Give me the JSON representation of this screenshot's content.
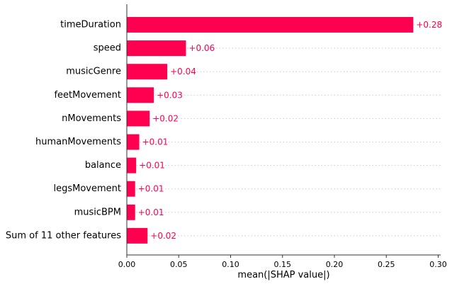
{
  "chart_data": {
    "type": "bar",
    "orientation": "horizontal",
    "categories": [
      "timeDuration",
      "speed",
      "musicGenre",
      "feetMovement",
      "nMovements",
      "humanMovements",
      "balance",
      "legsMovement",
      "musicBPM",
      "Sum of 11 other features"
    ],
    "values": [
      0.276,
      0.057,
      0.039,
      0.026,
      0.022,
      0.012,
      0.009,
      0.008,
      0.008,
      0.02
    ],
    "value_labels": [
      "+0.28",
      "+0.06",
      "+0.04",
      "+0.03",
      "+0.02",
      "+0.01",
      "+0.01",
      "+0.01",
      "+0.01",
      "+0.02"
    ],
    "xlabel": "mean(|SHAP value|)",
    "ylabel": "",
    "title": "",
    "xlim": [
      0,
      0.3
    ],
    "xticks": [
      0.0,
      0.05,
      0.1,
      0.15,
      0.2,
      0.25,
      0.3
    ],
    "xtick_labels": [
      "0.00",
      "0.05",
      "0.10",
      "0.15",
      "0.20",
      "0.25",
      "0.30"
    ],
    "grid": "dotted horizontal row guides",
    "legend": "none",
    "colors": {
      "bar": "#ff0051",
      "value_label": "#ff0051",
      "guide": "#cccccc",
      "axis": "#333333"
    }
  }
}
